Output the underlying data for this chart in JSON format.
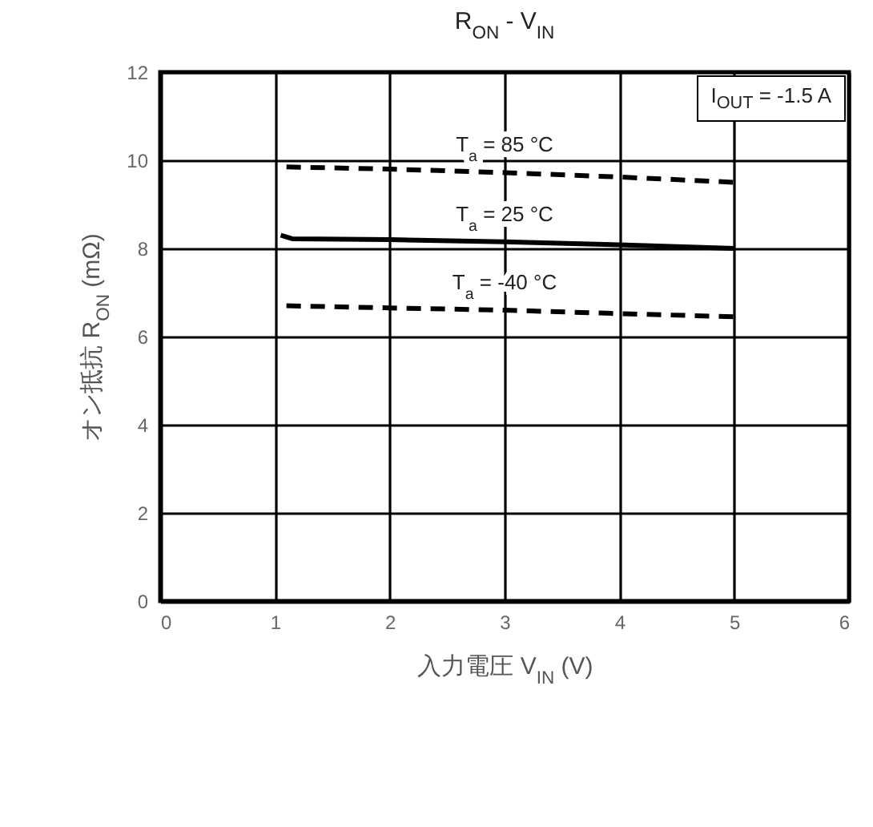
{
  "chart_data": {
    "type": "line",
    "title": "R$_{ON}$ - V$_{IN}$",
    "xlabel": "入力電圧  V$_{IN}$  (V)",
    "ylabel": "オン抵抗  R$_{ON}$  (mΩ)",
    "xlim": [
      0,
      6
    ],
    "xticks": [
      0,
      1,
      2,
      3,
      4,
      5,
      6
    ],
    "ylim": [
      0,
      12
    ],
    "yticks": [
      0,
      2,
      4,
      6,
      8,
      10,
      12
    ],
    "grid": true,
    "annotations": [
      "I$_{OUT}$ = -1.5 A"
    ],
    "series": [
      {
        "name": "T$_{a}$ = 85 °C",
        "color": "#000000",
        "line_style": "dashed",
        "x": [
          1.1,
          2,
          3,
          4,
          5
        ],
        "values": [
          9.85,
          9.8,
          9.72,
          9.62,
          9.5
        ]
      },
      {
        "name": "T$_{a}$ = 25 °C",
        "color": "#000000",
        "line_style": "solid",
        "x": [
          1.05,
          1.15,
          2,
          3,
          4,
          5
        ],
        "values": [
          8.3,
          8.22,
          8.2,
          8.15,
          8.08,
          8.0
        ]
      },
      {
        "name": "T$_{a}$ = -40 °C",
        "color": "#000000",
        "line_style": "dashed",
        "x": [
          1.1,
          2,
          3,
          4,
          5
        ],
        "values": [
          6.7,
          6.65,
          6.6,
          6.52,
          6.45
        ]
      }
    ]
  }
}
